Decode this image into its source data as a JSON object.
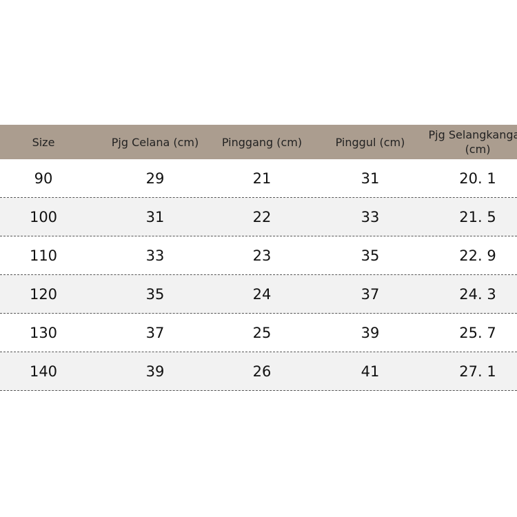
{
  "table": {
    "header": [
      "Size",
      "Pjg Celana (cm)",
      "Pinggang (cm)",
      "Pinggul (cm)",
      "Pjg Selangkangan (cm)"
    ],
    "rows": [
      [
        90,
        29,
        21,
        31,
        "20. 1"
      ],
      [
        100,
        31,
        22,
        33,
        "21. 5"
      ],
      [
        110,
        33,
        23,
        35,
        "22. 9"
      ],
      [
        120,
        35,
        24,
        37,
        "24. 3"
      ],
      [
        130,
        37,
        25,
        39,
        "25. 7"
      ],
      [
        140,
        39,
        26,
        41,
        "27. 1"
      ]
    ]
  }
}
